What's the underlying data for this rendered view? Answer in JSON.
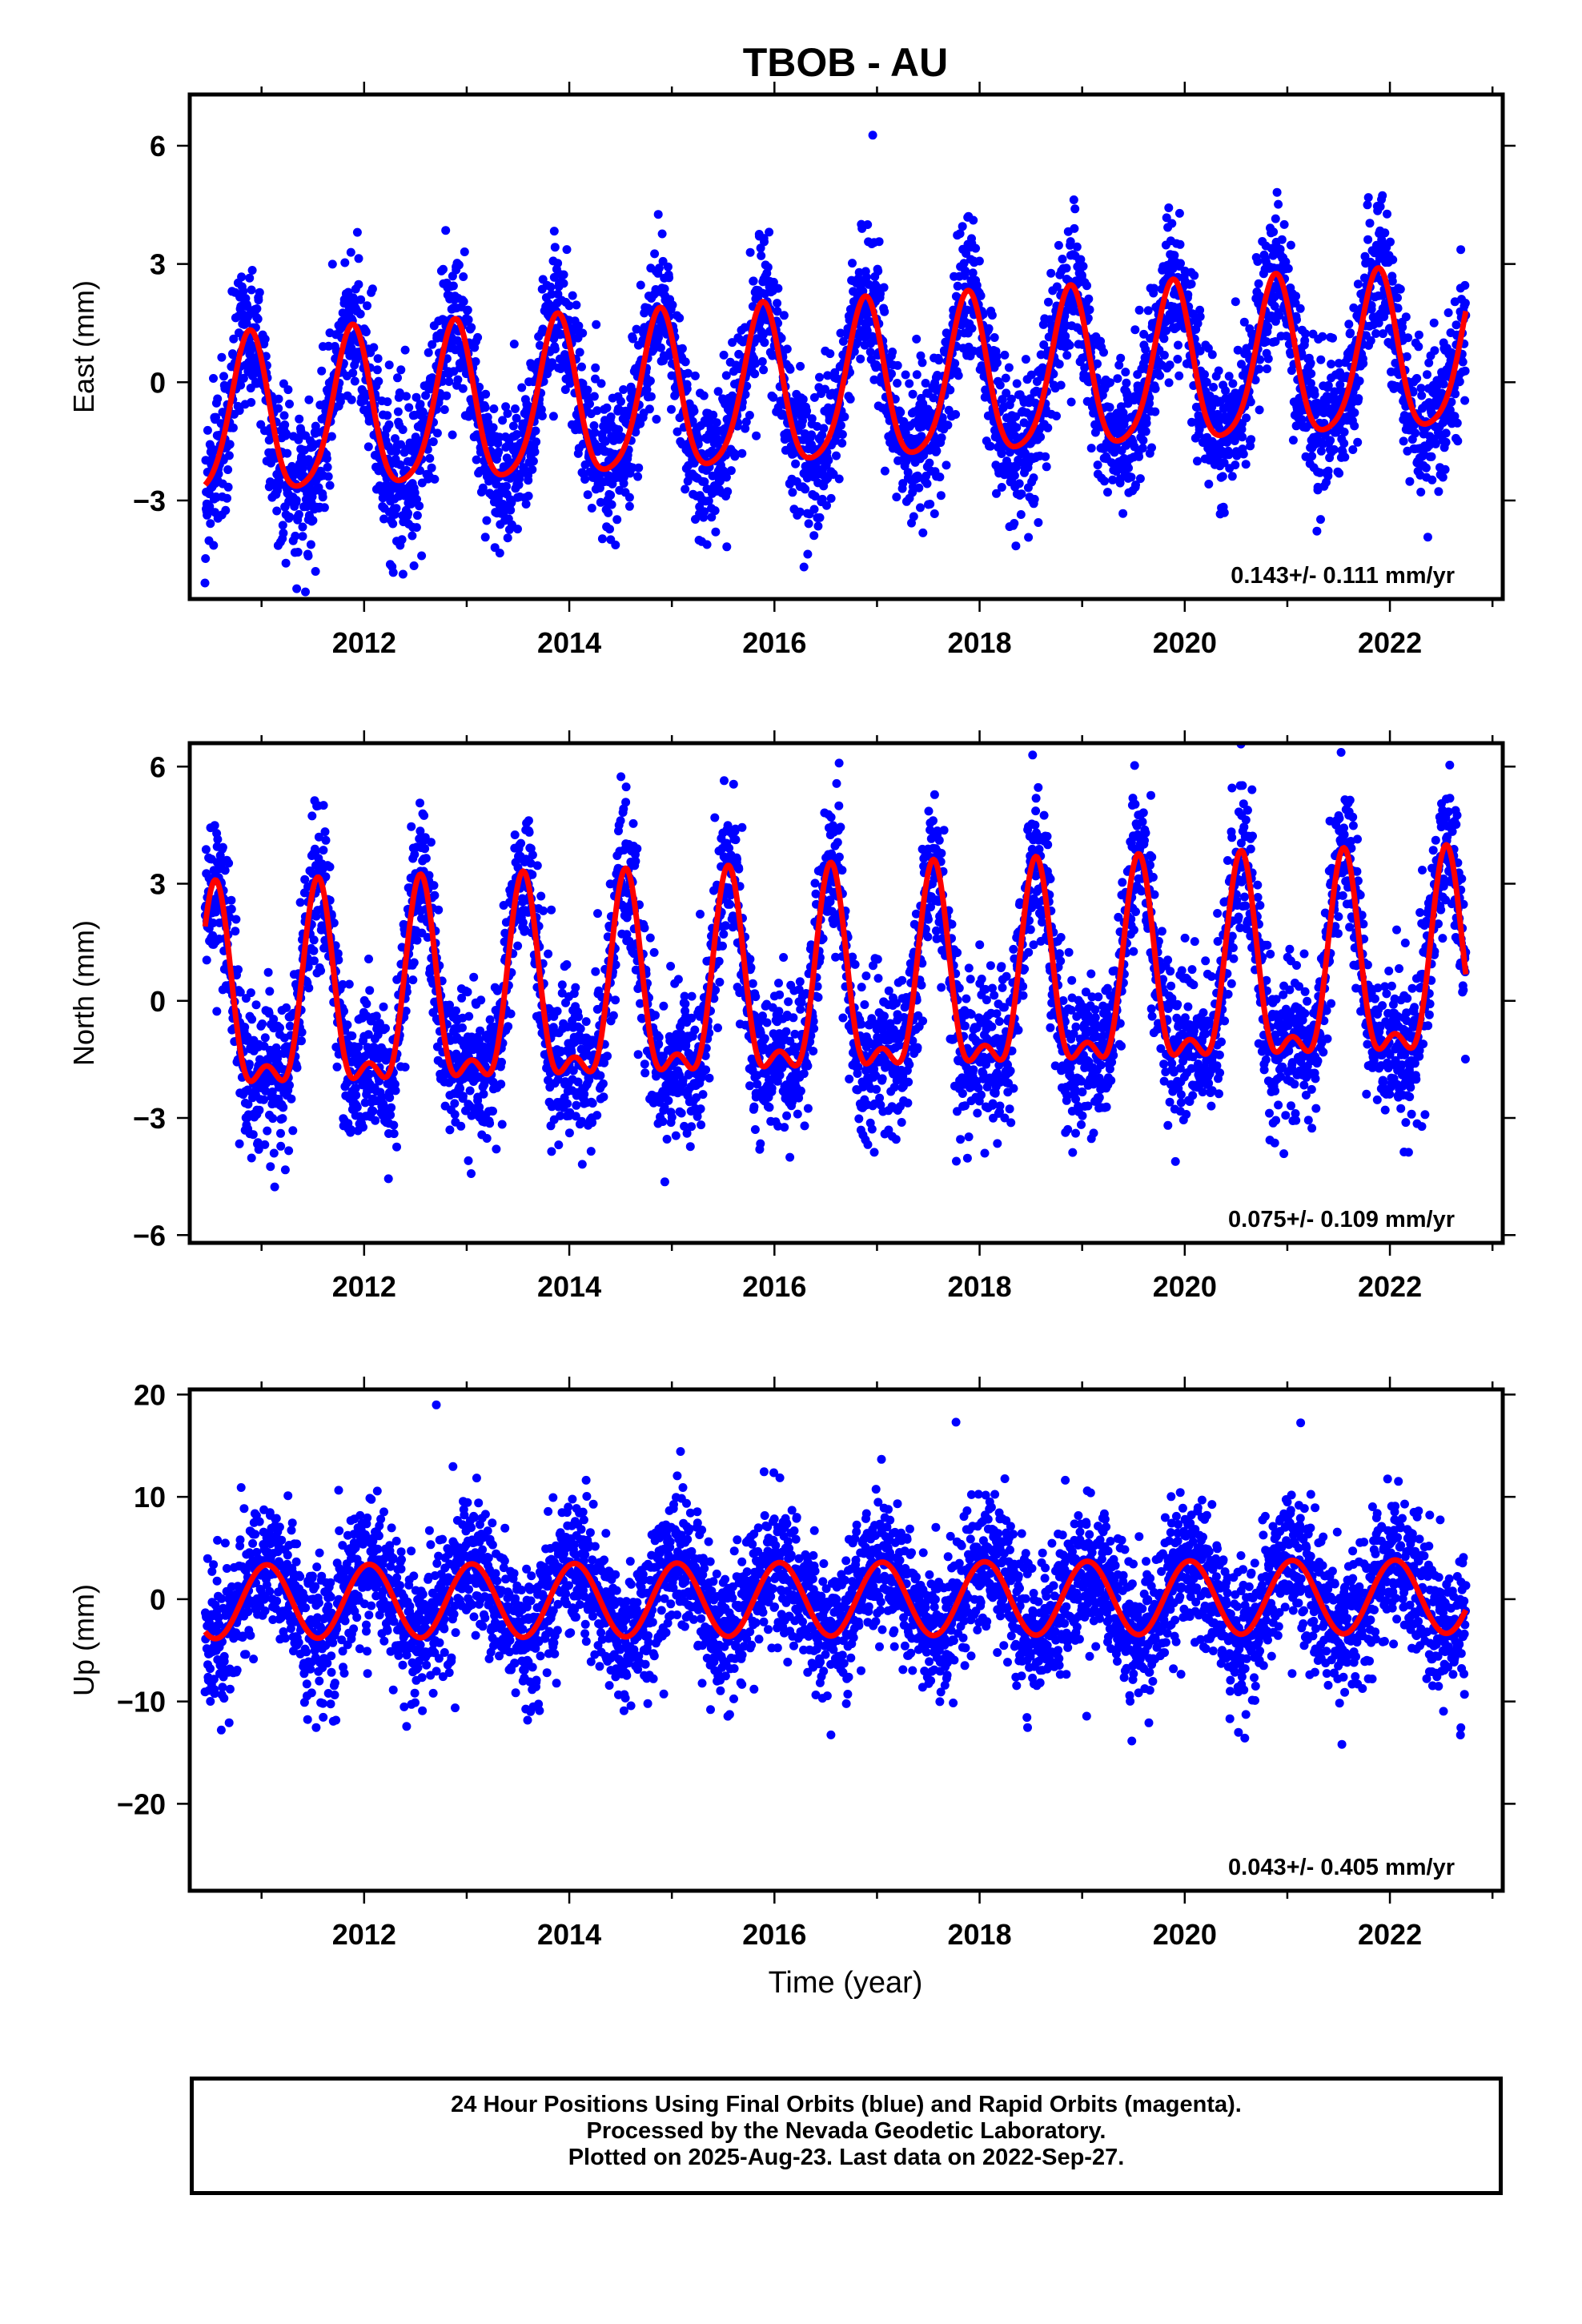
{
  "chart_data": [
    {
      "type": "scatter",
      "title": "TBOB - AU",
      "xlabel": "",
      "ylabel": "East (mm)",
      "xlim": [
        2010.3,
        2023.1
      ],
      "ylim": [
        -5.5,
        7.3
      ],
      "yticks": [
        -3,
        0,
        3,
        6
      ],
      "xticks": [
        2012,
        2014,
        2016,
        2018,
        2020,
        2022
      ],
      "trend_label": "0.143+/- 0.111 mm/yr",
      "data_span": [
        2010.45,
        2022.74
      ],
      "series": [
        {
          "name": "Final Orbits",
          "color": "#0000ff",
          "style": "points",
          "model": {
            "offset": -0.2,
            "rate": 0.143,
            "annual_amp": 2.0,
            "annual_peak": 0.88,
            "semiannual_amp": 0.35,
            "semiannual_peak": 0.9,
            "scatter": 0.9,
            "n_points": 4300
          }
        },
        {
          "name": "Fit",
          "color": "#ff0000",
          "style": "line",
          "model": {
            "offset": -0.2,
            "rate": 0.143,
            "annual_amp": 2.0,
            "annual_peak": 0.88,
            "semiannual_amp": 0.35,
            "semiannual_peak": 0.9
          }
        }
      ]
    },
    {
      "type": "scatter",
      "title": "",
      "xlabel": "",
      "ylabel": "North (mm)",
      "xlim": [
        2010.3,
        2023.1
      ],
      "ylim": [
        -6.2,
        6.6
      ],
      "yticks": [
        -6,
        -3,
        0,
        3,
        6
      ],
      "xticks": [
        2012,
        2014,
        2016,
        2018,
        2020,
        2022
      ],
      "trend_label": "0.075+/- 0.109 mm/yr",
      "data_span": [
        2010.45,
        2022.74
      ],
      "series": [
        {
          "name": "Final Orbits",
          "color": "#0000ff",
          "style": "points",
          "model": {
            "offset": 0.1,
            "rate": 0.075,
            "annual_amp": 2.4,
            "annual_peak": 0.55,
            "semiannual_amp": 1.05,
            "semiannual_peak": 0.05,
            "scatter": 0.95,
            "n_points": 4300
          }
        },
        {
          "name": "Fit",
          "color": "#ff0000",
          "style": "line",
          "model": {
            "offset": 0.1,
            "rate": 0.075,
            "annual_amp": 2.4,
            "annual_peak": 0.55,
            "semiannual_amp": 1.05,
            "semiannual_peak": 0.05
          }
        }
      ]
    },
    {
      "type": "scatter",
      "title": "",
      "xlabel": "Time (year)",
      "ylabel": "Up (mm)",
      "xlim": [
        2010.3,
        2023.1
      ],
      "ylim": [
        -28.5,
        20.5
      ],
      "yticks": [
        -20,
        -10,
        0,
        10,
        20
      ],
      "xticks": [
        2012,
        2014,
        2016,
        2018,
        2020,
        2022
      ],
      "trend_label": "0.043+/- 0.405 mm/yr",
      "data_span": [
        2010.45,
        2022.74
      ],
      "series": [
        {
          "name": "Final Orbits",
          "color": "#0000ff",
          "style": "points",
          "model": {
            "offset": 0.0,
            "rate": 0.043,
            "annual_amp": 3.6,
            "annual_peak": 0.05,
            "semiannual_amp": 0.0,
            "semiannual_peak": 0.0,
            "scatter": 3.4,
            "n_points": 4300
          }
        },
        {
          "name": "Fit",
          "color": "#ff0000",
          "style": "line",
          "model": {
            "offset": 0.0,
            "rate": 0.043,
            "annual_amp": 3.6,
            "annual_peak": 0.05,
            "semiannual_amp": 0.0,
            "semiannual_peak": 0.0
          }
        }
      ]
    }
  ],
  "footer": {
    "line1": "24 Hour Positions Using Final Orbits (blue) and Rapid Orbits (magenta).",
    "line2": "Processed by the Nevada Geodetic Laboratory.",
    "line3": "Plotted on 2025-Aug-23. Last data on 2022-Sep-27."
  }
}
